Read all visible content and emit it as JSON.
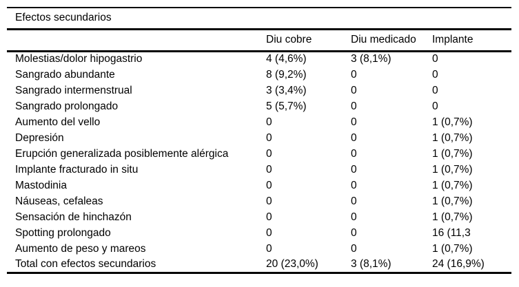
{
  "table": {
    "title": "Efectos secundarios",
    "columns": [
      "",
      "Diu cobre",
      "Diu medicado",
      "Implante"
    ],
    "rows": [
      {
        "label": "Molestias/dolor hipogastrio",
        "values": [
          "4 (4,6%)",
          "3 (8,1%)",
          "0"
        ]
      },
      {
        "label": "Sangrado abundante",
        "values": [
          "8 (9,2%)",
          "0",
          "0"
        ]
      },
      {
        "label": "Sangrado intermenstrual",
        "values": [
          "3 (3,4%)",
          "0",
          "0"
        ]
      },
      {
        "label": "Sangrado prolongado",
        "values": [
          "5 (5,7%)",
          "0",
          "0"
        ]
      },
      {
        "label": "Aumento del vello",
        "values": [
          "0",
          "0",
          "1 (0,7%)"
        ]
      },
      {
        "label": "Depresión",
        "values": [
          "0",
          "0",
          "1 (0,7%)"
        ]
      },
      {
        "label": "Erupción generalizada posiblemente alérgica",
        "values": [
          "0",
          "0",
          "1 (0,7%)"
        ]
      },
      {
        "label": "Implante fracturado in situ",
        "values": [
          "0",
          "0",
          "1 (0,7%)"
        ]
      },
      {
        "label": "Mastodinia",
        "values": [
          "0",
          "0",
          "1 (0,7%)"
        ]
      },
      {
        "label": "Náuseas, cefaleas",
        "values": [
          "0",
          "0",
          "1 (0,7%)"
        ]
      },
      {
        "label": "Sensación de hinchazón",
        "values": [
          "0",
          "0",
          "1 (0,7%)"
        ]
      },
      {
        "label": "Spotting prolongado",
        "values": [
          "0",
          "0",
          "16 (11,3"
        ]
      },
      {
        "label": "Aumento de peso y mareos",
        "values": [
          "0",
          "0",
          "1 (0,7%)"
        ]
      },
      {
        "label": "Total con efectos secundarios",
        "values": [
          "20 (23,0%)",
          "3 (8,1%)",
          "24 (16,9%)"
        ]
      }
    ],
    "colors": {
      "background": "#ffffff",
      "text": "#000000",
      "border": "#000000"
    }
  }
}
